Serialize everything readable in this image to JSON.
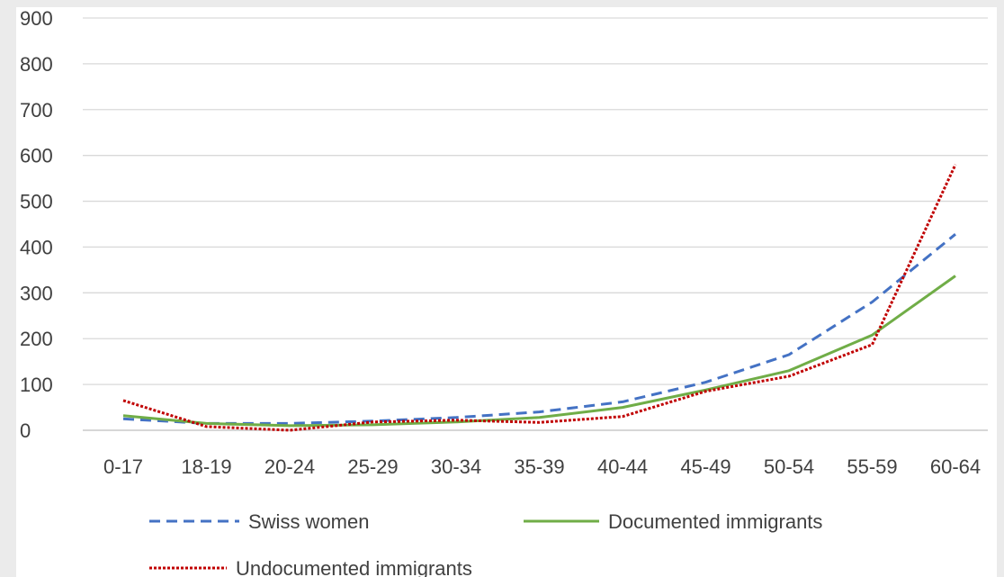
{
  "chart_data": {
    "type": "line",
    "title": "",
    "xlabel": "",
    "ylabel": "",
    "categories": [
      "0-17",
      "18-19",
      "20-24",
      "25-29",
      "30-34",
      "35-39",
      "40-44",
      "45-49",
      "50-54",
      "55-59",
      "60-64"
    ],
    "ylim": [
      0,
      900
    ],
    "yticks": [
      0,
      100,
      200,
      300,
      400,
      500,
      600,
      700,
      800,
      900
    ],
    "ytick_labels": [
      "0",
      "100",
      "200",
      "300",
      "400",
      "500",
      "600",
      "700",
      "800",
      "900"
    ],
    "grid": "horizontal",
    "legend_position": "bottom",
    "series": [
      {
        "name": "Swiss women",
        "color": "#4472c4",
        "line_style": "dashed",
        "values": [
          25,
          15,
          15,
          20,
          28,
          40,
          62,
          105,
          165,
          280,
          428
        ]
      },
      {
        "name": "Documented immigrants",
        "color": "#70ad47",
        "line_style": "solid",
        "values": [
          32,
          15,
          10,
          12,
          18,
          28,
          50,
          88,
          130,
          208,
          337
        ]
      },
      {
        "name": "Undocumented immigrants",
        "color": "#c00000",
        "line_style": "dotted",
        "values": [
          65,
          8,
          0,
          18,
          22,
          17,
          30,
          85,
          118,
          187,
          580
        ]
      }
    ]
  }
}
